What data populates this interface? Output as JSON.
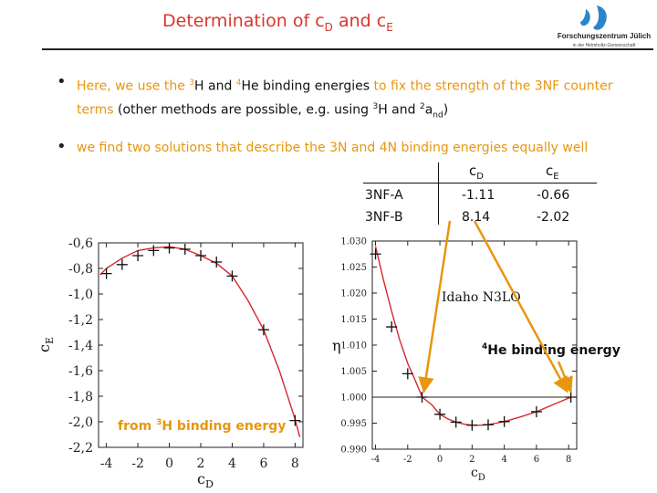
{
  "slide": {
    "title_prefix": "Determination of c",
    "title_sub1": "D",
    "title_mid": " and c",
    "title_sub2": "E",
    "logo_name": "Forschungszentrum Jülich",
    "logo_tagline": "in der Helmholtz-Gemeinschaft"
  },
  "bullets": [
    {
      "p1": "Here, we use the ",
      "s1": "3",
      "p2": "H and ",
      "s2": "4",
      "p3": "He binding energies",
      "p4": " to fix the strength of the 3NF counter terms ",
      "p5": "(other methods are possible, e.g. using  ",
      "s3": "3",
      "p6": "H  and ",
      "s4": "2",
      "p7": "a",
      "sub1": "nd",
      "p8": ")"
    },
    {
      "text": "we find two solutions that describe the 3N and 4N binding energies equally well"
    }
  ],
  "table": {
    "col1": "c",
    "col1_sub": "D",
    "col2": "c",
    "col2_sub": "E",
    "rows": [
      {
        "name": "3NF-A",
        "cD": "-1.11",
        "cE": "-0.66"
      },
      {
        "name": "3NF-B",
        "cD": "8.14",
        "cE": "-2.02"
      }
    ]
  },
  "chart_data": [
    {
      "type": "line",
      "title": "",
      "xlabel": "c",
      "xlabel_sub": "D",
      "ylabel": "c",
      "ylabel_sub": "E",
      "xlim": [
        -4.5,
        8.5
      ],
      "ylim": [
        -2.2,
        -0.6
      ],
      "xticks": [
        -4,
        -2,
        0,
        2,
        4,
        6,
        8
      ],
      "xtick_labels": [
        "-4",
        "-2",
        "0",
        "2",
        "4",
        "6",
        "8"
      ],
      "yticks": [
        -0.6,
        -0.8,
        -1.0,
        -1.2,
        -1.4,
        -1.6,
        -1.8,
        -2.0,
        -2.2
      ],
      "ytick_labels": [
        "-0,6",
        "-0,8",
        "-1,0",
        "-1,2",
        "-1,4",
        "-1,6",
        "-1,8",
        "-2,0",
        "-2,2"
      ],
      "series": [
        {
          "x": [
            -4.4,
            -4.0,
            -3.0,
            -2.0,
            -1.0,
            0.0,
            1.0,
            2.0,
            3.0,
            4.0,
            5.0,
            6.0,
            7.0,
            8.0,
            8.3
          ],
          "y": [
            -0.85,
            -0.8,
            -0.72,
            -0.66,
            -0.64,
            -0.63,
            -0.65,
            -0.7,
            -0.76,
            -0.86,
            -1.05,
            -1.28,
            -1.6,
            -1.98,
            -2.12
          ]
        }
      ],
      "markers": {
        "x": [
          -4,
          -3,
          -2,
          -1,
          0,
          1,
          2,
          3,
          4,
          6,
          8
        ],
        "y": [
          -0.84,
          -0.77,
          -0.7,
          -0.66,
          -0.64,
          -0.65,
          -0.7,
          -0.75,
          -0.86,
          -1.28,
          -1.99
        ]
      },
      "annotation": {
        "prefix": "from ",
        "sup": "3",
        "text": "H binding energy"
      }
    },
    {
      "type": "line",
      "title": "",
      "xlabel": "c",
      "xlabel_sub": "D",
      "ylabel": "η",
      "xlim": [
        -4.2,
        8.5
      ],
      "ylim": [
        0.99,
        1.03
      ],
      "xticks": [
        -4,
        -2,
        0,
        2,
        4,
        6,
        8
      ],
      "xtick_labels": [
        "-4",
        "-2",
        "0",
        "2",
        "4",
        "6",
        "8"
      ],
      "yticks": [
        0.99,
        0.995,
        1.0,
        1.005,
        1.01,
        1.015,
        1.02,
        1.025,
        1.03
      ],
      "ytick_labels": [
        "0.990",
        "0.995",
        "1.000",
        "1.005",
        "1.010",
        "1.015",
        "1.020",
        "1.025",
        "1.030"
      ],
      "reference_line": 1.0,
      "series": [
        {
          "x": [
            -4.0,
            -3.5,
            -3.0,
            -2.5,
            -2.0,
            -1.5,
            -1.1,
            -0.5,
            0.0,
            0.5,
            1.0,
            1.5,
            2.0,
            2.5,
            3.0,
            3.5,
            4.0,
            5.0,
            6.0,
            7.0,
            8.14
          ],
          "y": [
            1.029,
            1.0225,
            1.0165,
            1.011,
            1.0065,
            1.003,
            1.0,
            0.9985,
            0.9967,
            0.9958,
            0.9952,
            0.9948,
            0.9946,
            0.9946,
            0.9947,
            0.995,
            0.9953,
            0.9962,
            0.9972,
            0.9985,
            1.0
          ]
        }
      ],
      "markers": {
        "x": [
          -4.0,
          -3.0,
          -2.0,
          -1.11,
          0.0,
          1.0,
          2.0,
          3.0,
          4.0,
          6.0,
          8.14
        ],
        "y": [
          1.0275,
          1.0135,
          1.0045,
          1.0,
          0.9967,
          0.9952,
          0.9946,
          0.9947,
          0.9953,
          0.9972,
          1.0
        ]
      },
      "label": "Idaho N3LO",
      "annotation": {
        "sup": "4",
        "text": "He binding energy"
      }
    }
  ]
}
